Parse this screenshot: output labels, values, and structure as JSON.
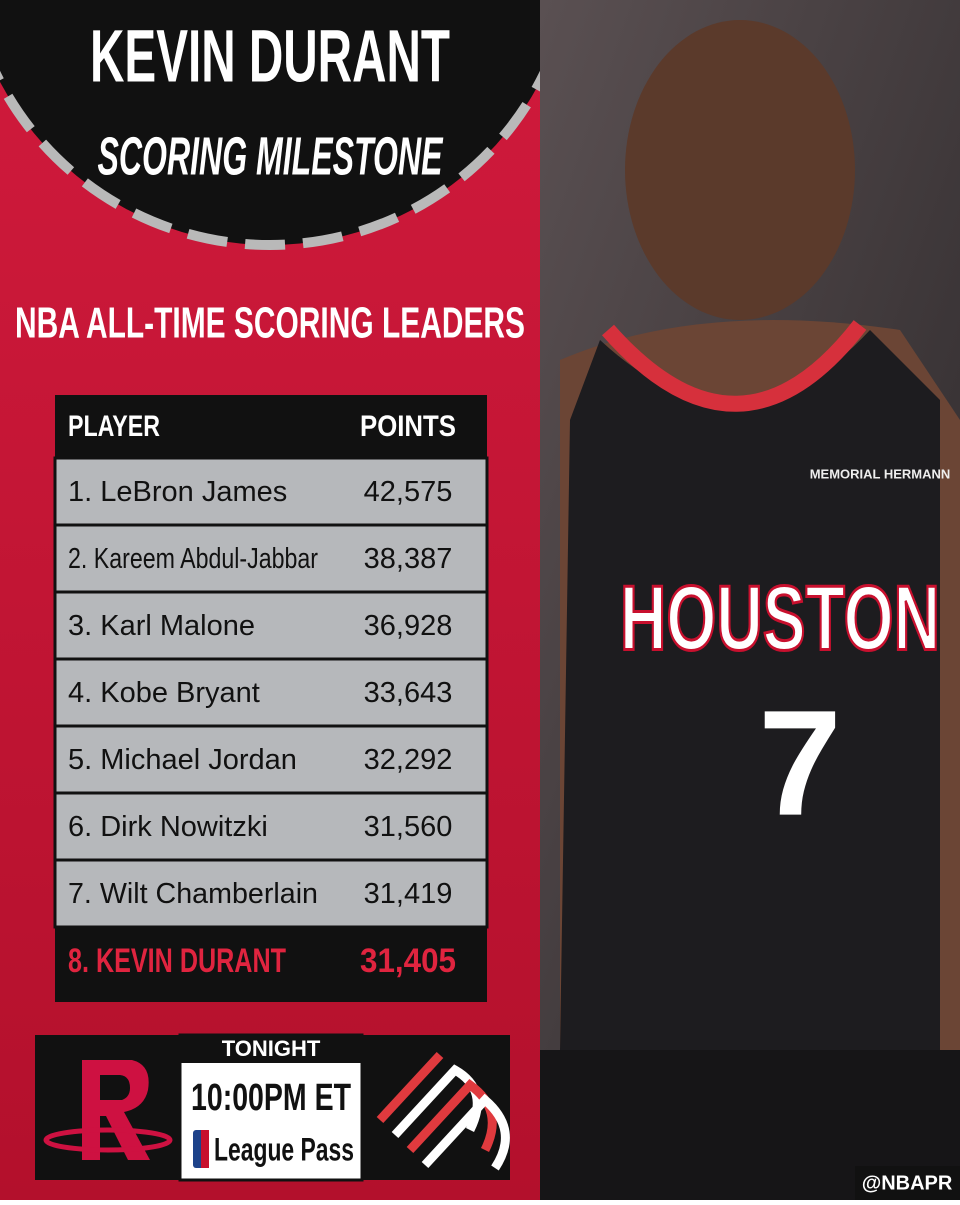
{
  "header": {
    "title": "KEVIN DURANT",
    "subtitle": "SCORING MILESTONE"
  },
  "section_title": "NBA ALL-TIME SCORING LEADERS",
  "table": {
    "columns": [
      "PLAYER",
      "POINTS"
    ],
    "rows": [
      [
        "1. LeBron James",
        "42,575"
      ],
      [
        "2. Kareem Abdul-Jabbar",
        "38,387"
      ],
      [
        "3. Karl Malone",
        "36,928"
      ],
      [
        "4. Kobe Bryant",
        "33,643"
      ],
      [
        "5. Michael Jordan",
        "32,292"
      ],
      [
        "6. Dirk Nowitzki",
        "31,560"
      ],
      [
        "7. Wilt Chamberlain",
        "31,419"
      ]
    ],
    "highlight_row": [
      "8. KEVIN DURANT",
      "31,405"
    ]
  },
  "game": {
    "label": "TONIGHT",
    "time": "10:00PM ET",
    "broadcast": "League Pass"
  },
  "photo": {
    "jersey_sponsor": "MEMORIAL HERMANN",
    "jersey_text": "HOUSTON",
    "jersey_number": "7"
  },
  "credit": "@NBAPR"
}
